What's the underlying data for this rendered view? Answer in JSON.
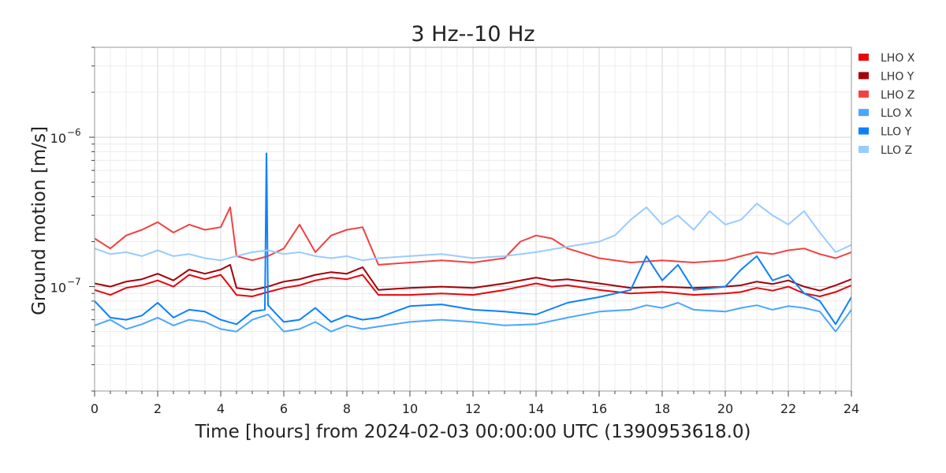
{
  "chart_data": {
    "type": "line",
    "title": "3 Hz--10 Hz",
    "xlabel": "Time [hours] from 2024-02-03 00:00:00 UTC (1390953618.0)",
    "ylabel": "Ground motion [m/s]",
    "xlim": [
      0,
      24
    ],
    "ylim": [
      2e-08,
      4e-06
    ],
    "yscale": "log",
    "grid": true,
    "legend_position": "top-right, outside plot",
    "x_ticks": [
      0,
      2,
      4,
      6,
      8,
      10,
      12,
      14,
      16,
      18,
      20,
      22,
      24
    ],
    "y_ticks": [
      {
        "value": 1e-07,
        "label": "10",
        "exponent": "−7"
      },
      {
        "value": 1e-06,
        "label": "10",
        "exponent": "−6"
      }
    ],
    "series": [
      {
        "name": "LHO X",
        "color": "#e8060c",
        "x": [
          0,
          0.5,
          1,
          1.5,
          2,
          2.5,
          3,
          3.5,
          4,
          4.3,
          4.5,
          5,
          5.5,
          6,
          6.5,
          7,
          7.5,
          8,
          8.5,
          9,
          10,
          11,
          12,
          13,
          14,
          14.5,
          15,
          16,
          17,
          18,
          19,
          20,
          20.5,
          21,
          21.5,
          22,
          22.5,
          23,
          23.5,
          24
        ],
        "y": [
          9.5e-08,
          8.8e-08,
          9.8e-08,
          1.02e-07,
          1.1e-07,
          1e-07,
          1.2e-07,
          1.12e-07,
          1.2e-07,
          1e-07,
          8.8e-08,
          8.6e-08,
          9.2e-08,
          9.8e-08,
          1.02e-07,
          1.1e-07,
          1.15e-07,
          1.12e-07,
          1.2e-07,
          8.8e-08,
          8.8e-08,
          9e-08,
          8.8e-08,
          9.5e-08,
          1.05e-07,
          1e-07,
          1.02e-07,
          9.5e-08,
          9e-08,
          9.2e-08,
          8.8e-08,
          9e-08,
          9.2e-08,
          9.8e-08,
          9.4e-08,
          1e-07,
          9e-08,
          8.6e-08,
          9.2e-08,
          1.02e-07
        ]
      },
      {
        "name": "LHO Y",
        "color": "#a50009",
        "x": [
          0,
          0.5,
          1,
          1.5,
          2,
          2.5,
          3,
          3.5,
          4,
          4.3,
          4.5,
          5,
          5.5,
          6,
          6.5,
          7,
          7.5,
          8,
          8.5,
          9,
          10,
          11,
          12,
          13,
          14,
          14.5,
          15,
          16,
          17,
          18,
          19,
          20,
          20.5,
          21,
          21.5,
          22,
          22.5,
          23,
          23.5,
          24
        ],
        "y": [
          1.05e-07,
          1e-07,
          1.08e-07,
          1.12e-07,
          1.22e-07,
          1.1e-07,
          1.3e-07,
          1.22e-07,
          1.3e-07,
          1.4e-07,
          9.8e-08,
          9.5e-08,
          1e-07,
          1.08e-07,
          1.12e-07,
          1.2e-07,
          1.25e-07,
          1.22e-07,
          1.35e-07,
          9.5e-08,
          9.8e-08,
          1e-07,
          9.8e-08,
          1.05e-07,
          1.15e-07,
          1.1e-07,
          1.12e-07,
          1.05e-07,
          9.8e-08,
          1e-07,
          9.8e-08,
          1e-07,
          1.02e-07,
          1.08e-07,
          1.04e-07,
          1.1e-07,
          1e-07,
          9.4e-08,
          1.02e-07,
          1.12e-07
        ]
      },
      {
        "name": "LHO Z",
        "color": "#f44040",
        "x": [
          0,
          0.5,
          1,
          1.5,
          2,
          2.5,
          3,
          3.5,
          4,
          4.3,
          4.5,
          5,
          5.5,
          6,
          6.5,
          7,
          7.5,
          8,
          8.5,
          9,
          10,
          11,
          12,
          13,
          13.5,
          14,
          14.5,
          15,
          16,
          17,
          18,
          19,
          20,
          20.5,
          21,
          21.5,
          22,
          22.5,
          23,
          23.5,
          24
        ],
        "y": [
          2.1e-07,
          1.8e-07,
          2.2e-07,
          2.4e-07,
          2.7e-07,
          2.3e-07,
          2.6e-07,
          2.4e-07,
          2.5e-07,
          3.4e-07,
          1.6e-07,
          1.5e-07,
          1.6e-07,
          1.8e-07,
          2.6e-07,
          1.7e-07,
          2.2e-07,
          2.4e-07,
          2.5e-07,
          1.4e-07,
          1.45e-07,
          1.5e-07,
          1.45e-07,
          1.55e-07,
          2e-07,
          2.2e-07,
          2.1e-07,
          1.8e-07,
          1.55e-07,
          1.45e-07,
          1.5e-07,
          1.45e-07,
          1.5e-07,
          1.6e-07,
          1.7e-07,
          1.65e-07,
          1.75e-07,
          1.8e-07,
          1.65e-07,
          1.55e-07,
          1.7e-07
        ]
      },
      {
        "name": "LLO X",
        "color": "#4ba6ff",
        "x": [
          0,
          0.5,
          1,
          1.5,
          2,
          2.5,
          3,
          3.5,
          4,
          4.5,
          5,
          5.5,
          6,
          6.5,
          7,
          7.5,
          8,
          8.5,
          9,
          10,
          11,
          12,
          13,
          14,
          15,
          16,
          17,
          17.5,
          18,
          18.5,
          19,
          20,
          20.5,
          21,
          21.5,
          22,
          22.5,
          23,
          23.5,
          24
        ],
        "y": [
          5.5e-08,
          6e-08,
          5.2e-08,
          5.6e-08,
          6.2e-08,
          5.5e-08,
          6e-08,
          5.8e-08,
          5.2e-08,
          5e-08,
          6e-08,
          6.5e-08,
          5e-08,
          5.2e-08,
          5.8e-08,
          5e-08,
          5.5e-08,
          5.2e-08,
          5.4e-08,
          5.8e-08,
          6e-08,
          5.8e-08,
          5.5e-08,
          5.6e-08,
          6.2e-08,
          6.8e-08,
          7e-08,
          7.5e-08,
          7.2e-08,
          7.8e-08,
          7e-08,
          6.8e-08,
          7.2e-08,
          7.5e-08,
          7e-08,
          7.4e-08,
          7.2e-08,
          6.8e-08,
          5e-08,
          7e-08
        ]
      },
      {
        "name": "LLO Y",
        "color": "#0a81ff",
        "x": [
          0,
          0.5,
          1,
          1.5,
          2,
          2.5,
          3,
          3.5,
          4,
          4.5,
          5,
          5.4,
          5.45,
          5.5,
          6,
          6.5,
          7,
          7.5,
          8,
          8.5,
          9,
          10,
          11,
          12,
          13,
          14,
          15,
          16,
          17,
          17.5,
          18,
          18.5,
          19,
          20,
          20.5,
          21,
          21.5,
          22,
          22.5,
          23,
          23.5,
          24
        ],
        "y": [
          8e-08,
          6.2e-08,
          6e-08,
          6.4e-08,
          7.8e-08,
          6.2e-08,
          7e-08,
          6.8e-08,
          6e-08,
          5.6e-08,
          6.8e-08,
          7e-08,
          7.8e-07,
          7.5e-08,
          5.8e-08,
          6e-08,
          7.2e-08,
          5.8e-08,
          6.4e-08,
          6e-08,
          6.2e-08,
          7.4e-08,
          7.6e-08,
          7e-08,
          6.8e-08,
          6.5e-08,
          7.8e-08,
          8.5e-08,
          9.5e-08,
          1.6e-07,
          1.1e-07,
          1.4e-07,
          9.5e-08,
          1e-07,
          1.3e-07,
          1.6e-07,
          1.1e-07,
          1.2e-07,
          9e-08,
          8e-08,
          5.6e-08,
          8.5e-08
        ]
      },
      {
        "name": "LLO Z",
        "color": "#99cbff",
        "x": [
          0,
          0.5,
          1,
          1.5,
          2,
          2.5,
          3,
          3.5,
          4,
          4.5,
          5,
          5.5,
          6,
          6.5,
          7,
          7.5,
          8,
          8.5,
          9,
          10,
          11,
          12,
          13,
          14,
          15,
          16,
          16.5,
          17,
          17.5,
          18,
          18.5,
          19,
          19.5,
          20,
          20.5,
          21,
          21.5,
          22,
          22.5,
          23,
          23.5,
          24
        ],
        "y": [
          1.8e-07,
          1.65e-07,
          1.7e-07,
          1.6e-07,
          1.75e-07,
          1.6e-07,
          1.65e-07,
          1.55e-07,
          1.5e-07,
          1.6e-07,
          1.7e-07,
          1.75e-07,
          1.65e-07,
          1.7e-07,
          1.6e-07,
          1.55e-07,
          1.6e-07,
          1.5e-07,
          1.55e-07,
          1.6e-07,
          1.65e-07,
          1.55e-07,
          1.6e-07,
          1.7e-07,
          1.85e-07,
          2e-07,
          2.2e-07,
          2.8e-07,
          3.4e-07,
          2.6e-07,
          3e-07,
          2.4e-07,
          3.2e-07,
          2.6e-07,
          2.8e-07,
          3.6e-07,
          3e-07,
          2.6e-07,
          3.2e-07,
          2.3e-07,
          1.7e-07,
          1.9e-07
        ]
      }
    ]
  }
}
